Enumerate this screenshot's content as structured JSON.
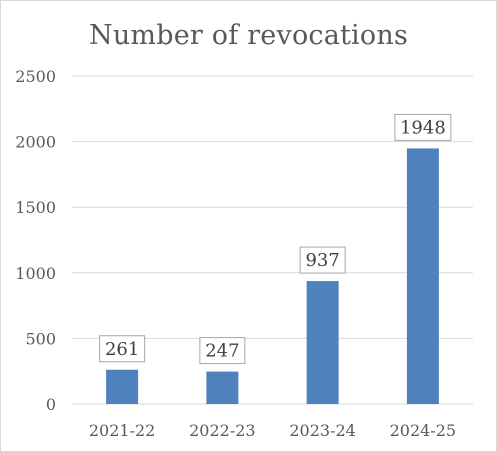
{
  "chart_data": {
    "type": "bar",
    "title": "Number of revocations",
    "categories": [
      "2021-22",
      "2022-23",
      "2023-24",
      "2024-25"
    ],
    "values": [
      261,
      247,
      937,
      1948
    ],
    "data_labels": [
      "261",
      "247",
      "937",
      "1948"
    ],
    "ylim": [
      0,
      2500
    ],
    "yticks": [
      0,
      500,
      1000,
      1500,
      2000,
      2500
    ],
    "ytick_labels": [
      "0",
      "500",
      "1000",
      "1500",
      "2000",
      "2500"
    ],
    "xlabel": "",
    "ylabel": "",
    "grid": true,
    "legend": "none",
    "colors": {
      "bar": "#4f81bd",
      "gridline": "#d9d9d9",
      "axis_text": "#595959",
      "label_border": "#a6a6a6"
    }
  }
}
